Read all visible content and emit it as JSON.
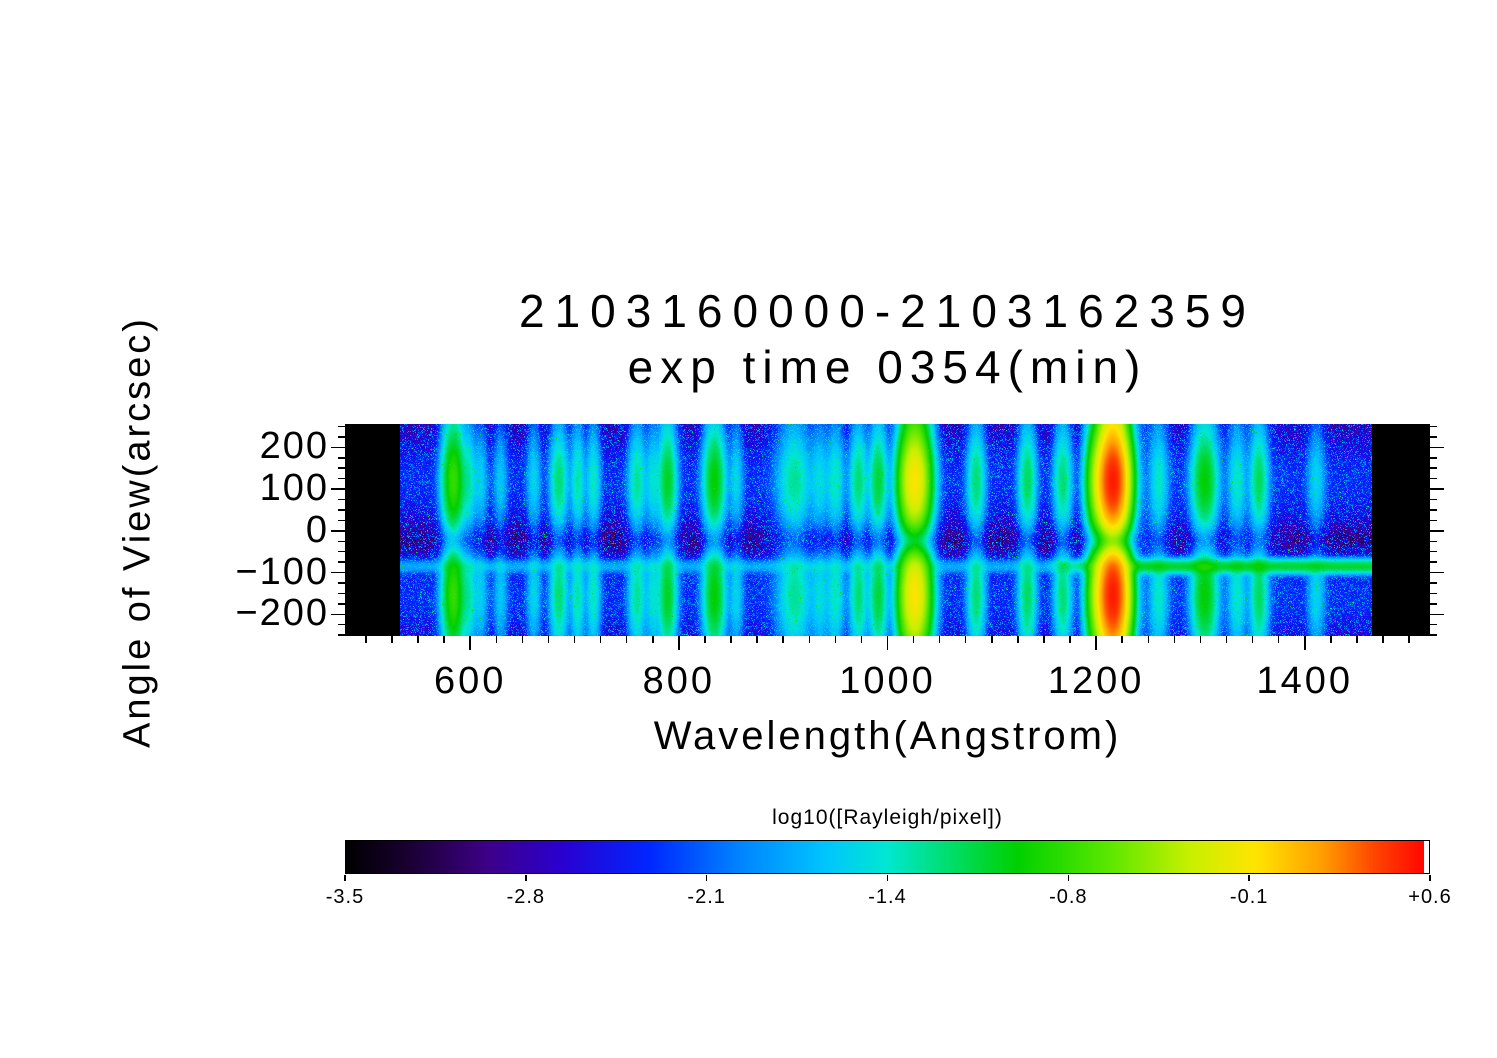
{
  "figure": {
    "background": "#ffffff",
    "text_color": "#000000"
  },
  "title": {
    "line1": "2103160000-2103162359",
    "line2": "exp time 0354(min)"
  },
  "axes": {
    "x": {
      "label": "Wavelength(Angstrom)",
      "min": 480,
      "max": 1520,
      "major_ticks": [
        600,
        800,
        1000,
        1200,
        1400
      ],
      "tick_labels": [
        "600",
        "800",
        "1000",
        "1200",
        "1400"
      ],
      "minor_step": 25
    },
    "y": {
      "label": "Angle of View(arcsec)",
      "min": -252,
      "max": 256,
      "major_ticks": [
        200,
        100,
        0,
        -100,
        -200
      ],
      "tick_labels": [
        "200",
        "100",
        "0",
        "−100",
        "−200"
      ],
      "minor_step": 25
    }
  },
  "colorbar": {
    "label": "log10([Rayleigh/pixel])",
    "min": -3.5,
    "max": 0.6,
    "tick_labels": [
      "-3.5",
      "-2.8",
      "-2.1",
      "-1.4",
      "-0.8",
      "-0.1",
      "+0.6"
    ],
    "stops": [
      [
        0.0,
        "#000000"
      ],
      [
        0.06,
        "#1a0033"
      ],
      [
        0.13,
        "#3d0087"
      ],
      [
        0.2,
        "#2a00d0"
      ],
      [
        0.28,
        "#0026ff"
      ],
      [
        0.36,
        "#0080ff"
      ],
      [
        0.44,
        "#00c3ff"
      ],
      [
        0.5,
        "#00e8d0"
      ],
      [
        0.56,
        "#00dd66"
      ],
      [
        0.62,
        "#00d000"
      ],
      [
        0.7,
        "#55e600"
      ],
      [
        0.78,
        "#c8f000"
      ],
      [
        0.84,
        "#ffe400"
      ],
      [
        0.9,
        "#ffa000"
      ],
      [
        0.95,
        "#ff4400"
      ],
      [
        1.0,
        "#ff0000"
      ]
    ]
  },
  "chart_data": {
    "type": "heatmap",
    "title": "2103160000-2103162359",
    "subtitle": "exp time 0354(min)",
    "xlabel": "Wavelength(Angstrom)",
    "ylabel": "Angle of View(arcsec)",
    "value_label": "log10([Rayleigh/pixel])",
    "xlim": [
      480,
      1520
    ],
    "ylim": [
      -252,
      256
    ],
    "value_range": [
      -3.5,
      0.6
    ],
    "detector_coverage_angstrom": [
      533,
      1464
    ],
    "background_noise_log10": [
      -3.45,
      -1.9
    ],
    "diffuse_glow_linear": 0.0028,
    "airglow_lobes": {
      "top": {
        "center": 120,
        "sigma": 65
      },
      "bottom": {
        "center": -155,
        "sigma": 70
      },
      "base": 0.18,
      "gap_center": -25,
      "gap_sigma": 30,
      "gap_depth": 0.72
    },
    "continuum_streak": {
      "angle_arcsec": -85,
      "sigma_arcsec": 10,
      "from_wavelength": 1150,
      "full_by_wavelength": 1230,
      "weak_fraction_below": 0.15,
      "peak_log10": -1.1
    },
    "emission_lines": [
      {
        "wavelength": 584,
        "peak_log10": -0.85,
        "sigma": 6
      },
      {
        "wavelength": 599,
        "peak_log10": -1.55,
        "sigma": 4
      },
      {
        "wavelength": 610,
        "peak_log10": -1.8,
        "sigma": 4
      },
      {
        "wavelength": 629,
        "peak_log10": -1.85,
        "sigma": 4
      },
      {
        "wavelength": 661,
        "peak_log10": -1.75,
        "sigma": 4
      },
      {
        "wavelength": 685,
        "peak_log10": -1.35,
        "sigma": 5
      },
      {
        "wavelength": 703,
        "peak_log10": -1.5,
        "sigma": 4
      },
      {
        "wavelength": 718,
        "peak_log10": -1.55,
        "sigma": 4
      },
      {
        "wavelength": 760,
        "peak_log10": -1.45,
        "sigma": 5
      },
      {
        "wavelength": 775,
        "peak_log10": -1.65,
        "sigma": 4
      },
      {
        "wavelength": 789,
        "peak_log10": -1.15,
        "sigma": 5
      },
      {
        "wavelength": 834,
        "peak_log10": -1.05,
        "sigma": 6
      },
      {
        "wavelength": 855,
        "peak_log10": -1.75,
        "sigma": 4
      },
      {
        "wavelength": 911,
        "peak_log10": -1.45,
        "sigma": 9
      },
      {
        "wavelength": 935,
        "peak_log10": -1.7,
        "sigma": 5
      },
      {
        "wavelength": 950,
        "peak_log10": -1.55,
        "sigma": 5
      },
      {
        "wavelength": 972,
        "peak_log10": -1.35,
        "sigma": 5
      },
      {
        "wavelength": 991,
        "peak_log10": -1.2,
        "sigma": 5
      },
      {
        "wavelength": 1026,
        "peak_log10": -0.15,
        "sigma": 8
      },
      {
        "wavelength": 1085,
        "peak_log10": -1.35,
        "sigma": 5
      },
      {
        "wavelength": 1134,
        "peak_log10": -1.3,
        "sigma": 5
      },
      {
        "wavelength": 1168,
        "peak_log10": -1.35,
        "sigma": 5
      },
      {
        "wavelength": 1200,
        "peak_log10": -0.75,
        "sigma": 6
      },
      {
        "wavelength": 1216,
        "peak_log10": 0.45,
        "sigma": 8
      },
      {
        "wavelength": 1260,
        "peak_log10": -1.6,
        "sigma": 5
      },
      {
        "wavelength": 1304,
        "peak_log10": -1.05,
        "sigma": 7
      },
      {
        "wavelength": 1335,
        "peak_log10": -1.6,
        "sigma": 5
      },
      {
        "wavelength": 1356,
        "peak_log10": -1.3,
        "sigma": 5
      },
      {
        "wavelength": 1411,
        "peak_log10": -1.75,
        "sigma": 5
      }
    ],
    "noise_bands": [
      {
        "center": 584,
        "sigma": 8,
        "add_log10": -2.5
      },
      {
        "center": 790,
        "sigma": 8,
        "add_log10": -2.5
      },
      {
        "center": 905,
        "sigma": 15,
        "add_log10": -2.6
      },
      {
        "center": 1030,
        "sigma": 10,
        "add_log10": -2.45
      },
      {
        "center": 1216,
        "sigma": 10,
        "add_log10": -2.2
      },
      {
        "center": 1248,
        "sigma": 16,
        "add_log10": -2.4
      },
      {
        "center": 1345,
        "sigma": 20,
        "add_log10": -2.65
      }
    ]
  }
}
